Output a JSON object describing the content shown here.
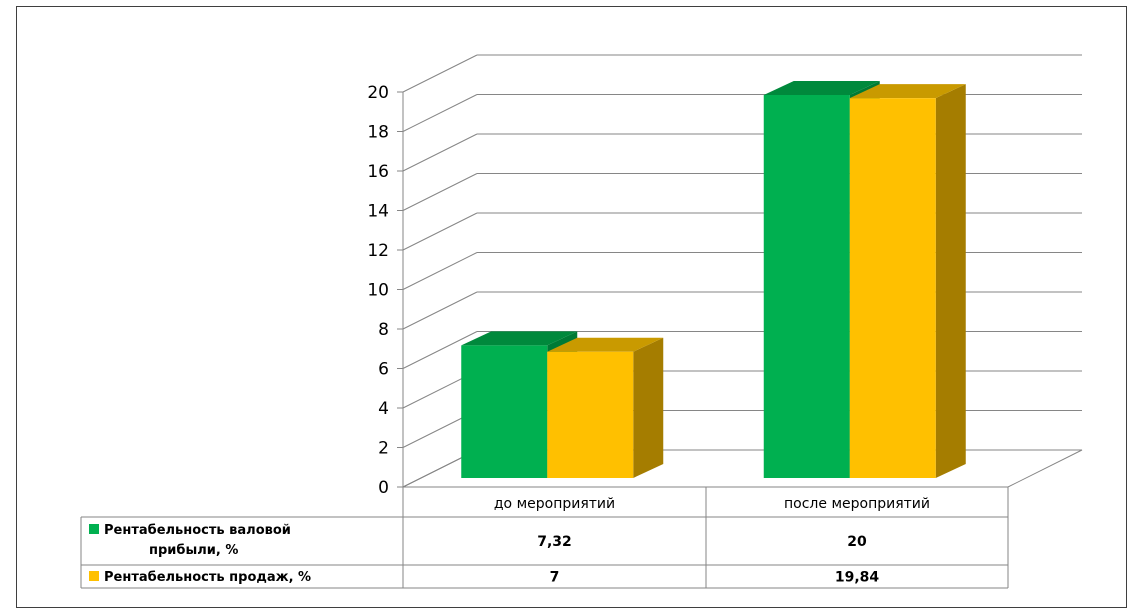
{
  "chart_data": {
    "type": "bar",
    "categories": [
      "до мероприятий",
      "после мероприятий"
    ],
    "series": [
      {
        "name": "Рентабельность валовой прибыли, %",
        "values": [
          7.32,
          20
        ],
        "color": "#00b050",
        "top_color": "#00893c",
        "side_color": "#007a35"
      },
      {
        "name": "Рентабельность продаж, %",
        "values": [
          7,
          19.84
        ],
        "color": "#ffc000",
        "top_color": "#c99a00",
        "side_color": "#a57d00"
      }
    ],
    "ylim": [
      0,
      20
    ],
    "yticks": [
      "0",
      "2",
      "4",
      "6",
      "8",
      "10",
      "12",
      "14",
      "16",
      "18",
      "20"
    ],
    "table": {
      "rows": [
        {
          "legend_lines": [
            "Рентабельность валовой",
            "прибыли, %"
          ],
          "cells": [
            "7,32",
            "20"
          ]
        },
        {
          "legend_lines": [
            "Рентабельность продаж, %"
          ],
          "cells": [
            "7",
            "19,84"
          ]
        }
      ]
    },
    "grid": true,
    "style": "3d-clustered-column-with-data-table"
  }
}
